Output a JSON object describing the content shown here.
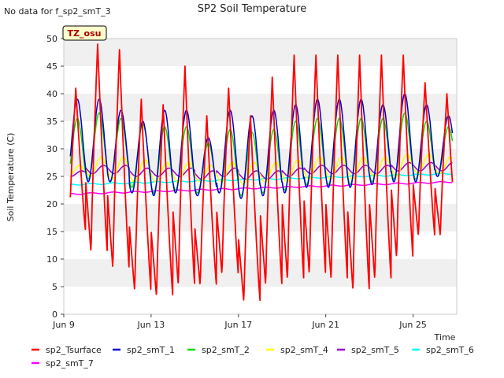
{
  "chart_data": {
    "type": "line",
    "title": "SP2 Soil Temperature",
    "no_data_note": "No data for f_sp2_smT_3",
    "site_label": "TZ_osu",
    "xlabel": "Time",
    "ylabel": "Soil Temperature (C)",
    "xlim": [
      9.0,
      27.0
    ],
    "ylim": [
      0,
      50
    ],
    "yticks": [
      0,
      5,
      10,
      15,
      20,
      25,
      30,
      35,
      40,
      45,
      50
    ],
    "xticks": [
      {
        "label": "Jun 9",
        "day": 9
      },
      {
        "label": "Jun 13",
        "day": 13
      },
      {
        "label": "Jun 17",
        "day": 17
      },
      {
        "label": "Jun 21",
        "day": 21
      },
      {
        "label": "Jun 25",
        "day": 25
      }
    ],
    "grid": "horizontal bands",
    "legend_position": "bottom",
    "days": [
      9,
      10,
      11,
      12,
      13,
      14,
      15,
      16,
      17,
      18,
      19,
      20,
      21,
      22,
      23,
      24,
      25,
      26
    ],
    "series": [
      {
        "name": "sp2_Tsurface",
        "color": "#ff0000",
        "kind": "surface",
        "daily_max": [
          41,
          49,
          48,
          39,
          38,
          45,
          36,
          41,
          36,
          43,
          47,
          47,
          47,
          47,
          47,
          47,
          42,
          40
        ],
        "daily_min": [
          15,
          11,
          8,
          4,
          3,
          5,
          5,
          7,
          2,
          5,
          6,
          7,
          6,
          4,
          6,
          10,
          14,
          14
        ]
      },
      {
        "name": "sp2_smT_1",
        "color": "#0000cc",
        "kind": "shallow",
        "daily_max": [
          39,
          39,
          37,
          35,
          37,
          37,
          32,
          37,
          36,
          37,
          38,
          39,
          39,
          39,
          38,
          40,
          38,
          36
        ],
        "daily_min": [
          24.5,
          24,
          24,
          22,
          21.5,
          22,
          21.5,
          22,
          21,
          21.5,
          22,
          23,
          23,
          23,
          23.5,
          24,
          24,
          25
        ]
      },
      {
        "name": "sp2_smT_2",
        "color": "#00dd00",
        "kind": "shallow",
        "daily_max": [
          35.5,
          36.5,
          35.5,
          34.5,
          34,
          34,
          31,
          33.5,
          33,
          33.5,
          35,
          35.5,
          35.5,
          35.5,
          35.5,
          36.5,
          35,
          34
        ],
        "daily_min": [
          24,
          24.5,
          24,
          23,
          22,
          22.5,
          22,
          22,
          21.5,
          22,
          22.5,
          23.5,
          23.5,
          23.5,
          24,
          24.5,
          24.5,
          25
        ]
      },
      {
        "name": "sp2_smT_4",
        "color": "#ffff00",
        "kind": "mid",
        "daily_max": [
          27,
          28.5,
          28.5,
          28,
          27.5,
          27.5,
          27,
          27.5,
          27.5,
          27.5,
          28,
          28.5,
          28.5,
          28.5,
          28.5,
          29,
          29,
          28.5
        ],
        "daily_min": [
          25,
          25,
          24.5,
          24,
          24,
          24,
          24,
          24,
          23.5,
          24,
          24,
          24.5,
          24.5,
          24.5,
          25,
          25,
          25.5,
          25.5
        ]
      },
      {
        "name": "sp2_smT_5",
        "color": "#9900cc",
        "kind": "deep",
        "daily_max": [
          26,
          27,
          27,
          26.5,
          26.5,
          26.5,
          26,
          26.5,
          26,
          26,
          26.5,
          27,
          27,
          27,
          27,
          27.5,
          27.5,
          27.5
        ],
        "daily_min": [
          25,
          25.5,
          25.5,
          25,
          25,
          25,
          24.5,
          25,
          24.5,
          24.5,
          25,
          25.5,
          25.5,
          25.5,
          25.5,
          26,
          26,
          26
        ]
      },
      {
        "name": "sp2_smT_6",
        "color": "#00ffff",
        "kind": "trend",
        "start": 23.5,
        "end": 25.5
      },
      {
        "name": "sp2_smT_7",
        "color": "#ff00ff",
        "kind": "trend",
        "start": 21.8,
        "end": 24.0
      }
    ]
  }
}
